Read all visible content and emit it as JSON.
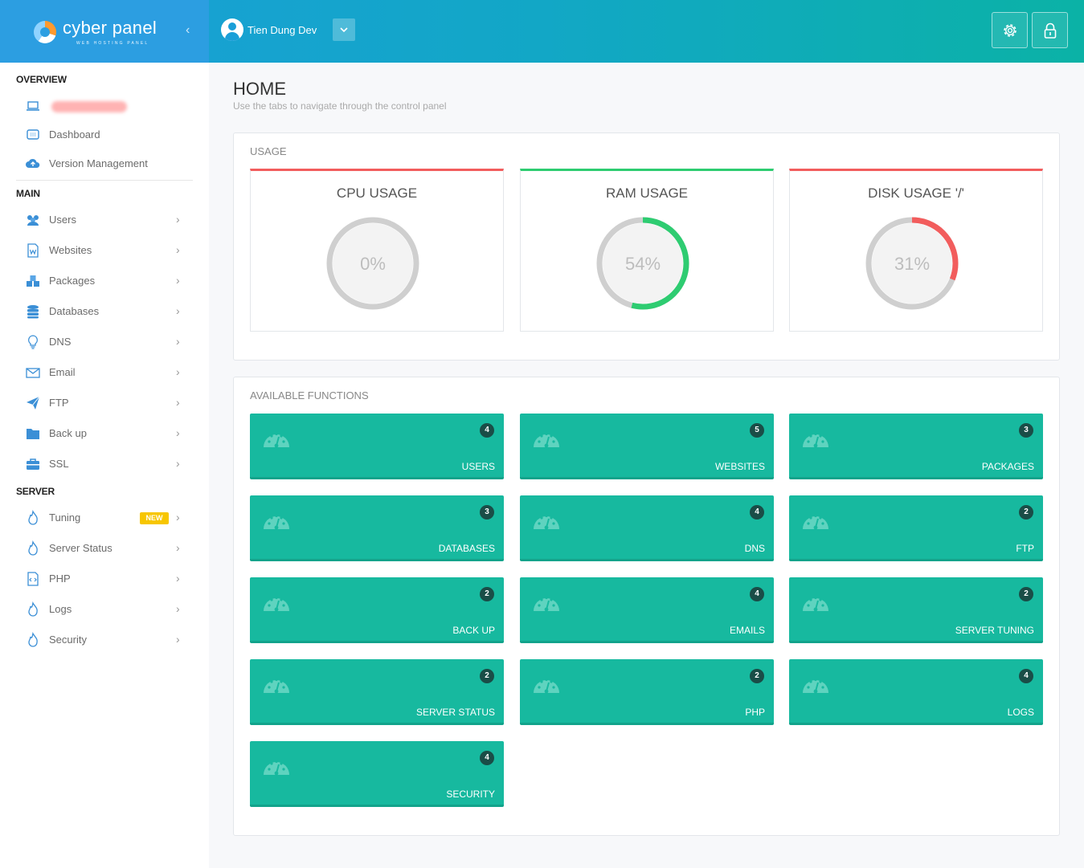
{
  "header": {
    "logo_text": "cyber panel",
    "logo_sub": "WEB HOSTING PANEL",
    "user_name": "Tien Dung Dev"
  },
  "sidebar": {
    "overview_title": "OVERVIEW",
    "overview_items": [
      {
        "label": "",
        "icon": "laptop-icon"
      },
      {
        "label": "Dashboard",
        "icon": "dashboard-icon"
      },
      {
        "label": "Version Management",
        "icon": "cloud-upload-icon"
      }
    ],
    "main_title": "MAIN",
    "main_items": [
      {
        "label": "Users",
        "icon": "users-icon"
      },
      {
        "label": "Websites",
        "icon": "websites-icon"
      },
      {
        "label": "Packages",
        "icon": "packages-icon"
      },
      {
        "label": "Databases",
        "icon": "database-icon"
      },
      {
        "label": "DNS",
        "icon": "lightbulb-icon"
      },
      {
        "label": "Email",
        "icon": "email-icon"
      },
      {
        "label": "FTP",
        "icon": "paper-plane-icon"
      },
      {
        "label": "Back up",
        "icon": "folder-icon"
      },
      {
        "label": "SSL",
        "icon": "briefcase-icon"
      }
    ],
    "server_title": "SERVER",
    "server_items": [
      {
        "label": "Tuning",
        "icon": "fire-icon",
        "badge": "NEW"
      },
      {
        "label": "Server Status",
        "icon": "fire-icon"
      },
      {
        "label": "PHP",
        "icon": "code-file-icon"
      },
      {
        "label": "Logs",
        "icon": "fire-icon"
      },
      {
        "label": "Security",
        "icon": "fire-icon"
      }
    ]
  },
  "page": {
    "title": "HOME",
    "subtitle": "Use the tabs to navigate through the control panel"
  },
  "usage": {
    "title": "USAGE",
    "gauges": [
      {
        "title": "CPU USAGE",
        "percent": 0,
        "display": "0%",
        "color": "#f25d5d"
      },
      {
        "title": "RAM USAGE",
        "percent": 54,
        "display": "54%",
        "color": "#2ecc71"
      },
      {
        "title": "DISK USAGE '/'",
        "percent": 31,
        "display": "31%",
        "color": "#f25d5d"
      }
    ]
  },
  "functions": {
    "title": "AVAILABLE FUNCTIONS",
    "tiles": [
      {
        "label": "USERS",
        "count": "4"
      },
      {
        "label": "WEBSITES",
        "count": "5"
      },
      {
        "label": "PACKAGES",
        "count": "3"
      },
      {
        "label": "DATABASES",
        "count": "3"
      },
      {
        "label": "DNS",
        "count": "4"
      },
      {
        "label": "FTP",
        "count": "2"
      },
      {
        "label": "BACK UP",
        "count": "2"
      },
      {
        "label": "EMAILS",
        "count": "4"
      },
      {
        "label": "SERVER TUNING",
        "count": "2"
      },
      {
        "label": "SERVER STATUS",
        "count": "2"
      },
      {
        "label": "PHP",
        "count": "2"
      },
      {
        "label": "LOGS",
        "count": "4"
      },
      {
        "label": "SECURITY",
        "count": "4"
      }
    ]
  },
  "colors": {
    "tile": "#17b99f",
    "brand": "#2c9ee1"
  }
}
